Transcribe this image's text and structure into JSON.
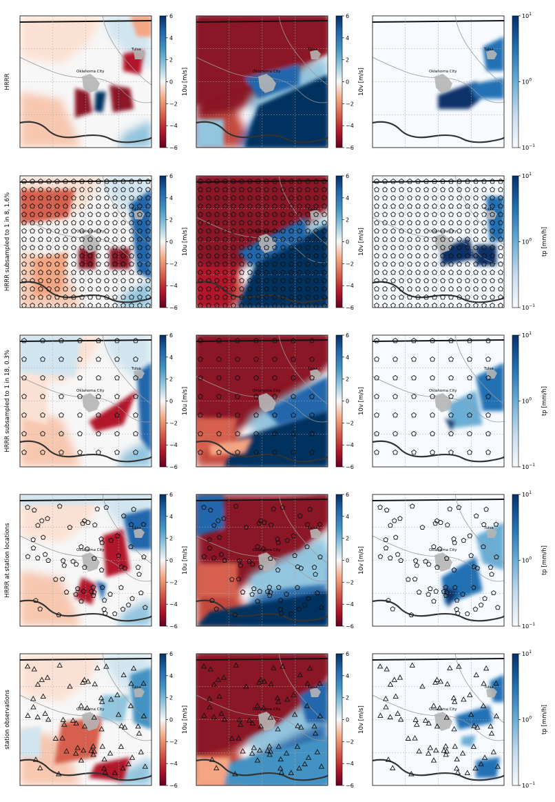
{
  "figure": {
    "rows": [
      {
        "label": "HRRR",
        "marker": "none"
      },
      {
        "label": "HRRR subsampled to 1 in 8, 1.6%",
        "marker": "pentagon-grid-dense"
      },
      {
        "label": "HRRR subsampled to 1 in 18, 0.3%",
        "marker": "pentagon-grid-sparse"
      },
      {
        "label": "HRRR at station locations",
        "marker": "pentagon-stations"
      },
      {
        "label": "station observations",
        "marker": "triangle-stations"
      }
    ],
    "city_labels": [
      "Oklahoma City",
      "Tulsa"
    ]
  },
  "chart_data": [
    {
      "type": "heatmap",
      "panel": "u-wind",
      "variable": "10u",
      "colorbar_label": "10u [m/s]",
      "scale": "linear",
      "vmin": -6,
      "vmax": 6,
      "ticks": [
        "6",
        "4",
        "2",
        "0",
        "−2",
        "−4",
        "−6"
      ],
      "colormap": "RdBu",
      "colors": {
        "low": "#67001f",
        "mid": "#f7f7f7",
        "high": "#053061"
      }
    },
    {
      "type": "heatmap",
      "panel": "v-wind",
      "variable": "10v",
      "colorbar_label": "10v [m/s]",
      "scale": "linear",
      "vmin": -6,
      "vmax": 6,
      "ticks": [
        "6",
        "4",
        "2",
        "0",
        "−2",
        "−4",
        "−6"
      ],
      "colormap": "RdBu",
      "colors": {
        "low": "#67001f",
        "mid": "#f7f7f7",
        "high": "#053061"
      }
    },
    {
      "type": "heatmap",
      "panel": "precipitation",
      "variable": "tp",
      "colorbar_labels": [
        "",
        "tp [mm/h]",
        "tp [mm/h]",
        "tp [mm/h]",
        "tp [mm/h]"
      ],
      "scale": "log",
      "vmin": 0.1,
      "vmax": 10,
      "tick_bases": [
        "10",
        "10",
        "10"
      ],
      "tick_exps": [
        "1",
        "0",
        "−1"
      ],
      "colormap": "Blues",
      "colors": {
        "low": "#f7fbff",
        "high": "#08306b"
      }
    }
  ]
}
